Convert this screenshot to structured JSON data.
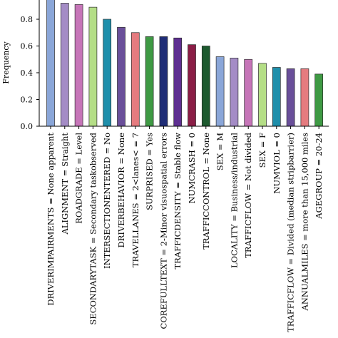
{
  "chart_data": {
    "type": "bar",
    "title": "",
    "xlabel": "",
    "ylabel": "Frequency",
    "ylim": [
      0.0,
      0.95
    ],
    "yticks": [
      "0.0",
      "0.2",
      "0.4",
      "0.6",
      "0.8"
    ],
    "grid": false,
    "categories": [
      "DRIVERIMPAIRMENTS = None apparent",
      "ALIGNMENT = Straight",
      "ROADGRADE = Level",
      "SECONDARYTASK = Secondary taskobserved",
      "INTERSECTIONENTERED = No",
      "DRIVERBEHAVIOR = None",
      "TRAVELLANES = 2<lanes< = 7",
      "SURPRISED = Yes",
      "COREFULLTEXT = 2-Minor visuospatial errors",
      "TRAFFICDENSITY = Stable flow",
      "NUMCRASH = 0",
      "TRAFFICCONTROL = None",
      "SEX = M",
      "LOCALITY = Business/industrial",
      "TRAFFICFLOW = Not divided",
      "SEX = F",
      "NUMVIOL = 0",
      "TRAFFICFLOW = Divided (median stripbarrier)",
      "ANNUALMILES = more than 15,000 miles",
      "AGEGROUP = 20-24"
    ],
    "values": [
      0.96,
      0.92,
      0.91,
      0.89,
      0.8,
      0.74,
      0.7,
      0.67,
      0.67,
      0.66,
      0.61,
      0.6,
      0.52,
      0.51,
      0.5,
      0.47,
      0.44,
      0.43,
      0.43,
      0.39
    ],
    "colors": [
      "#8aa6d8",
      "#a48cc6",
      "#c675b8",
      "#b4de86",
      "#1f8fab",
      "#6a4f9a",
      "#e57b7f",
      "#3f9a44",
      "#1f2d77",
      "#5e2f91",
      "#8a1d46",
      "#1d5a2f",
      "#8aa6d8",
      "#a48cc6",
      "#c675b8",
      "#b4de86",
      "#1f8fab",
      "#6a4f9a",
      "#e57b7f",
      "#3f9a44"
    ]
  }
}
